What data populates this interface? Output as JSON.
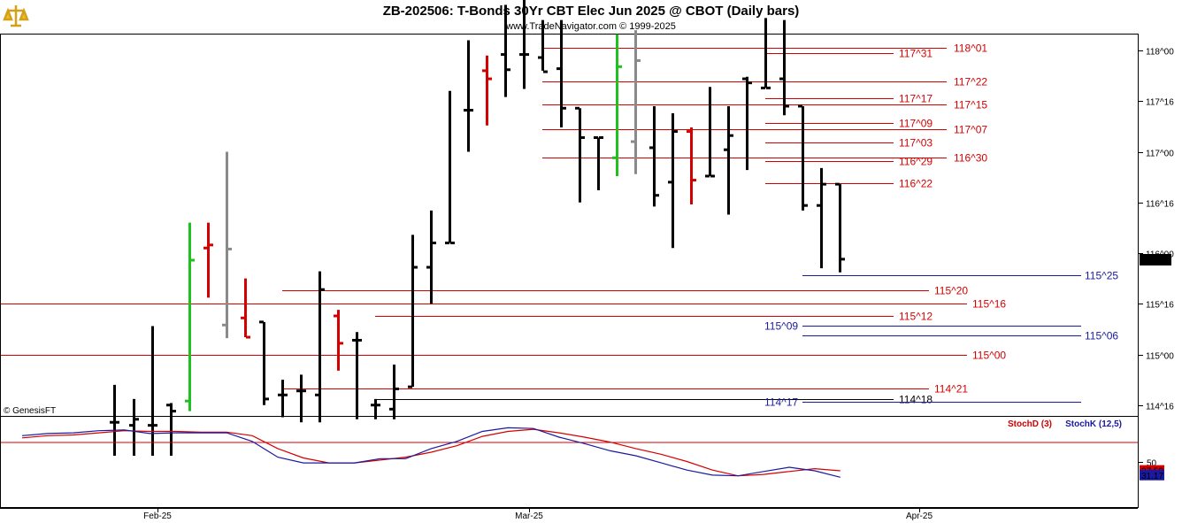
{
  "header": {
    "title": "ZB-202506:  T-Bonds 30Yr CBT Elec Jun 2025 @ CBOT  (Daily bars)",
    "subtitle": "www.TradeNavigator.com © 1999-2025",
    "watermark": "© GenesisFT"
  },
  "colors": {
    "red": "#d40000",
    "blue": "#1a1aa0",
    "black": "#000000",
    "green": "#20c020",
    "gray": "#8a8a8a"
  },
  "chart_data": [
    {
      "type": "ohlc",
      "price_scale": "32nds (118^00 = 118 + 0/32)",
      "y_ticks": [
        "118^00",
        "117^16",
        "117^00",
        "116^16",
        "116^00",
        "115^16",
        "115^00",
        "114^16"
      ],
      "last_price": "115^30",
      "x_ticks": [
        "Feb-25",
        "Mar-25",
        "Apr-25"
      ],
      "bars": [
        {
          "x": 129,
          "o": 114.33,
          "h": 114.7,
          "l": 114.0,
          "c": 114.33,
          "color": "black"
        },
        {
          "x": 151,
          "o": 114.3,
          "h": 114.56,
          "l": 114.0,
          "c": 114.36,
          "color": "black"
        },
        {
          "x": 172,
          "o": 114.3,
          "h": 115.28,
          "l": 114.0,
          "c": 114.3,
          "color": "black"
        },
        {
          "x": 193,
          "o": 114.5,
          "h": 114.52,
          "l": 114.0,
          "c": 114.44,
          "color": "black"
        },
        {
          "x": 214,
          "o": 114.54,
          "h": 116.3,
          "l": 114.44,
          "c": 115.93,
          "color": "green"
        },
        {
          "x": 235,
          "o": 116.05,
          "h": 116.3,
          "l": 115.56,
          "c": 116.08,
          "color": "red"
        },
        {
          "x": 256,
          "o": 115.29,
          "h": 117.0,
          "l": 115.16,
          "c": 116.04,
          "color": "gray"
        },
        {
          "x": 277,
          "o": 115.36,
          "h": 115.75,
          "l": 115.17,
          "c": 115.17,
          "color": "red"
        },
        {
          "x": 298,
          "o": 115.32,
          "h": 115.32,
          "l": 114.5,
          "c": 114.56,
          "color": "black"
        },
        {
          "x": 319,
          "o": 114.6,
          "h": 114.75,
          "l": 114.38,
          "c": 114.6,
          "color": "black"
        },
        {
          "x": 340,
          "o": 114.64,
          "h": 114.8,
          "l": 114.33,
          "c": 114.64,
          "color": "black"
        },
        {
          "x": 361,
          "o": 114.6,
          "h": 115.82,
          "l": 114.33,
          "c": 115.64,
          "color": "black"
        },
        {
          "x": 382,
          "o": 115.38,
          "h": 115.44,
          "l": 114.84,
          "c": 115.11,
          "color": "red"
        },
        {
          "x": 403,
          "o": 115.14,
          "h": 115.22,
          "l": 114.36,
          "c": 115.14,
          "color": "black"
        },
        {
          "x": 424,
          "o": 114.5,
          "h": 114.56,
          "l": 114.36,
          "c": 114.5,
          "color": "black"
        },
        {
          "x": 445,
          "o": 114.46,
          "h": 114.9,
          "l": 114.36,
          "c": 114.66,
          "color": "black"
        },
        {
          "x": 466,
          "o": 114.68,
          "h": 116.18,
          "l": 114.68,
          "c": 115.86,
          "color": "black"
        },
        {
          "x": 487,
          "o": 115.86,
          "h": 116.42,
          "l": 115.5,
          "c": 116.1,
          "color": "black"
        },
        {
          "x": 508,
          "o": 116.1,
          "h": 117.6,
          "l": 116.1,
          "c": 116.1,
          "color": "black"
        },
        {
          "x": 529,
          "o": 117.41,
          "h": 118.1,
          "l": 117.0,
          "c": 117.41,
          "color": "black"
        },
        {
          "x": 550,
          "o": 117.8,
          "h": 117.95,
          "l": 117.26,
          "c": 117.72,
          "color": "red"
        },
        {
          "x": 571,
          "o": 117.96,
          "h": 118.45,
          "l": 117.54,
          "c": 117.81,
          "color": "black"
        },
        {
          "x": 592,
          "o": 117.96,
          "h": 118.7,
          "l": 117.62,
          "c": 117.96,
          "color": "black"
        },
        {
          "x": 613,
          "o": 117.93,
          "h": 118.3,
          "l": 117.8,
          "c": 117.79,
          "color": "black"
        },
        {
          "x": 634,
          "o": 117.82,
          "h": 118.3,
          "l": 117.24,
          "c": 117.43,
          "color": "black"
        },
        {
          "x": 655,
          "o": 117.43,
          "h": 117.43,
          "l": 116.5,
          "c": 117.14,
          "color": "black"
        },
        {
          "x": 676,
          "o": 117.14,
          "h": 117.14,
          "l": 116.62,
          "c": 117.14,
          "color": "black"
        },
        {
          "x": 697,
          "o": 116.94,
          "h": 118.16,
          "l": 116.76,
          "c": 117.84,
          "color": "green"
        },
        {
          "x": 718,
          "o": 117.1,
          "h": 118.2,
          "l": 116.78,
          "c": 117.9,
          "color": "gray"
        },
        {
          "x": 739,
          "o": 117.04,
          "h": 117.45,
          "l": 116.46,
          "c": 116.57,
          "color": "black"
        },
        {
          "x": 760,
          "o": 116.7,
          "h": 117.38,
          "l": 116.05,
          "c": 117.2,
          "color": "black"
        },
        {
          "x": 781,
          "o": 117.2,
          "h": 117.24,
          "l": 116.48,
          "c": 116.72,
          "color": "red"
        },
        {
          "x": 802,
          "o": 116.76,
          "h": 117.64,
          "l": 116.76,
          "c": 116.76,
          "color": "black"
        },
        {
          "x": 823,
          "o": 117.02,
          "h": 117.45,
          "l": 116.38,
          "c": 117.16,
          "color": "black"
        },
        {
          "x": 844,
          "o": 117.72,
          "h": 117.74,
          "l": 116.82,
          "c": 117.68,
          "color": "black"
        },
        {
          "x": 865,
          "o": 117.63,
          "h": 118.32,
          "l": 117.63,
          "c": 117.63,
          "color": "black"
        },
        {
          "x": 886,
          "o": 117.72,
          "h": 118.3,
          "l": 117.36,
          "c": 117.45,
          "color": "black"
        },
        {
          "x": 907,
          "o": 117.45,
          "h": 117.45,
          "l": 116.42,
          "c": 116.47,
          "color": "black"
        },
        {
          "x": 928,
          "o": 116.47,
          "h": 116.84,
          "l": 115.85,
          "c": 116.68,
          "color": "black"
        },
        {
          "x": 949,
          "o": 116.68,
          "h": 116.68,
          "l": 115.81,
          "c": 115.94,
          "color": "black"
        }
      ]
    },
    {
      "type": "line",
      "indicator": "stochastic",
      "series": [
        {
          "name": "StochD (3)",
          "color": "red",
          "values": [
            83,
            86,
            87,
            90,
            93,
            92,
            92,
            91,
            91,
            86,
            68,
            55,
            48,
            48,
            52,
            56,
            63,
            72,
            85,
            92,
            95,
            90,
            84,
            77,
            68,
            60,
            50,
            38,
            30,
            32,
            36,
            40,
            37
          ]
        },
        {
          "name": "StochK (12,5)",
          "color": "blue",
          "values": [
            86,
            89,
            90,
            93,
            94,
            89,
            90,
            90,
            90,
            78,
            56,
            48,
            48,
            48,
            54,
            54,
            68,
            78,
            92,
            97,
            96,
            84,
            75,
            65,
            58,
            48,
            38,
            31,
            30,
            36,
            42,
            37,
            28
          ]
        }
      ],
      "y_ticks": [
        "50"
      ],
      "badges": [
        "37.50",
        "31.17"
      ]
    }
  ],
  "levels": [
    {
      "label": "118^01",
      "color": "red",
      "v": 118.03
    },
    {
      "label": "117^31",
      "color": "red",
      "v": 117.97
    },
    {
      "label": "117^22",
      "color": "red",
      "v": 117.69
    },
    {
      "label": "117^17",
      "color": "red",
      "v": 117.53
    },
    {
      "label": "117^15",
      "color": "red",
      "v": 117.47
    },
    {
      "label": "117^09",
      "color": "red",
      "v": 117.28
    },
    {
      "label": "117^07",
      "color": "red",
      "v": 117.22
    },
    {
      "label": "117^03",
      "color": "red",
      "v": 117.09
    },
    {
      "label": "116^30",
      "color": "red",
      "v": 116.94
    },
    {
      "label": "116^29",
      "color": "red",
      "v": 116.91
    },
    {
      "label": "116^22",
      "color": "red",
      "v": 116.69
    },
    {
      "label": "115^25",
      "color": "blue",
      "v": 115.78
    },
    {
      "label": "115^20",
      "color": "red",
      "v": 115.63
    },
    {
      "label": "115^16",
      "color": "red",
      "v": 115.5
    },
    {
      "label": "115^12",
      "color": "red",
      "v": 115.38
    },
    {
      "label": "115^09",
      "color": "blue",
      "v": 115.28
    },
    {
      "label": "115^06",
      "color": "blue",
      "v": 115.19
    },
    {
      "label": "115^00",
      "color": "red",
      "v": 115.0
    },
    {
      "label": "114^21",
      "color": "red",
      "v": 114.66
    },
    {
      "label": "114^18",
      "color": "black",
      "v": 114.56
    },
    {
      "label": "114^17",
      "color": "blue",
      "v": 114.53
    }
  ]
}
